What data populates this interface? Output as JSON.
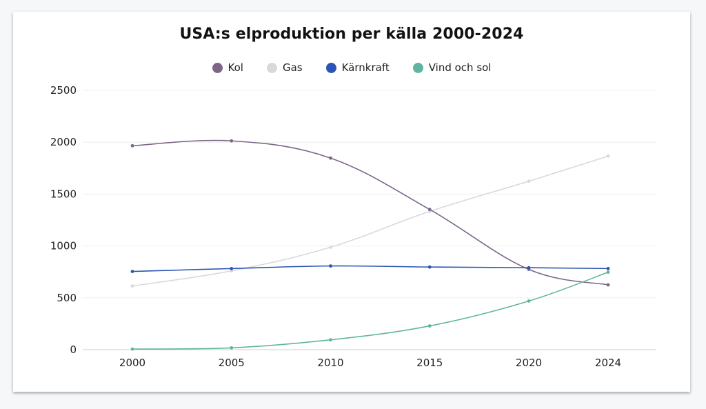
{
  "chart_data": {
    "type": "line",
    "title": "USA:s elproduktion per källa 2000-2024",
    "xlabel": "",
    "ylabel": "",
    "categories": [
      "2000",
      "2005",
      "2010",
      "2015",
      "2020",
      "2024"
    ],
    "x": [
      2000,
      2005,
      2010,
      2015,
      2020,
      2024
    ],
    "ylim": [
      0,
      2500
    ],
    "yticks": [
      "0",
      "500",
      "1000",
      "1500",
      "2000",
      "2500"
    ],
    "grid": true,
    "legend_position": "top-center",
    "series": [
      {
        "name": "Kol",
        "color": "#7b6688",
        "values": [
          1966,
          2013,
          1847,
          1352,
          774,
          625
        ]
      },
      {
        "name": "Gas",
        "color": "#d9d9d9",
        "values": [
          614,
          760,
          988,
          1333,
          1624,
          1866
        ]
      },
      {
        "name": "Kärnkraft",
        "color": "#2a55b3",
        "values": [
          754,
          782,
          807,
          797,
          790,
          782
        ]
      },
      {
        "name": "Vind och sol",
        "color": "#5fb59f",
        "values": [
          6,
          18,
          95,
          229,
          469,
          747
        ]
      }
    ]
  }
}
